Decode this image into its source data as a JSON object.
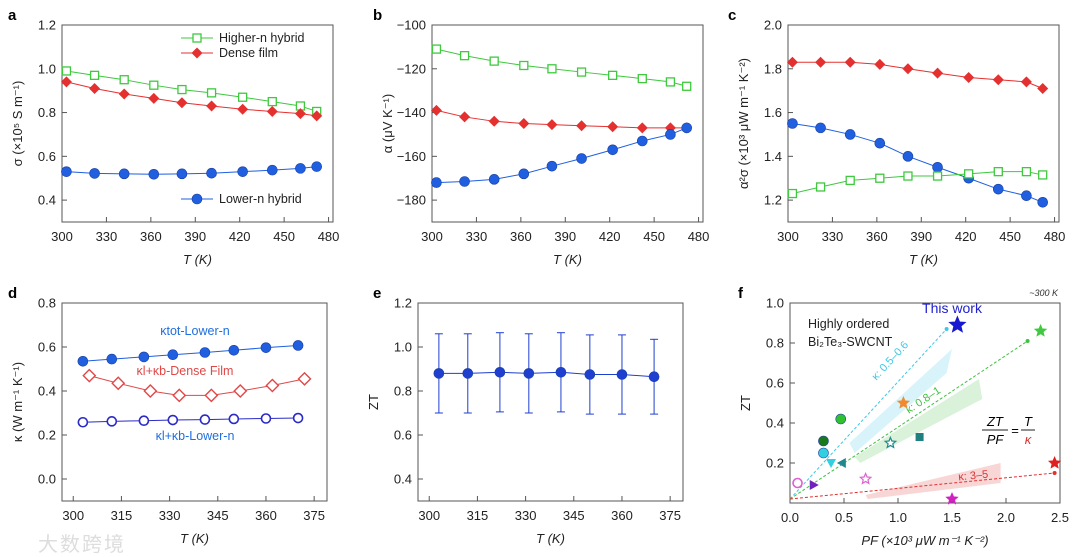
{
  "watermark": "大数跨境",
  "chart_data": [
    {
      "panel": "a",
      "type": "line",
      "xlabel": "T (K)",
      "ylabel": "σ (×10⁵ S m⁻¹)",
      "xlim": [
        300,
        483
      ],
      "ylim": [
        0.3,
        1.2
      ],
      "xticks": [
        300,
        330,
        360,
        390,
        420,
        450,
        480
      ],
      "yticks": [
        0.4,
        0.6,
        0.8,
        1.0,
        1.2
      ],
      "ytick_labels": [
        "0.4",
        "0.6",
        "0.8",
        "1.0",
        "1.2"
      ],
      "x": [
        303,
        322,
        342,
        362,
        381,
        401,
        422,
        442,
        461,
        472
      ],
      "series": [
        {
          "name": "Higher-n hybrid",
          "color": "#3ec93e",
          "marker": "open-square",
          "values": [
            0.99,
            0.97,
            0.95,
            0.925,
            0.905,
            0.89,
            0.87,
            0.85,
            0.83,
            0.805
          ]
        },
        {
          "name": "Dense film",
          "color": "#e53030",
          "marker": "diamond",
          "values": [
            0.94,
            0.91,
            0.885,
            0.865,
            0.845,
            0.83,
            0.815,
            0.805,
            0.795,
            0.785
          ]
        },
        {
          "name": "Lower-n hybrid",
          "color": "#1f5fe0",
          "marker": "circle",
          "values": [
            0.53,
            0.522,
            0.52,
            0.518,
            0.52,
            0.523,
            0.53,
            0.537,
            0.545,
            0.553
          ]
        }
      ]
    },
    {
      "panel": "b",
      "type": "line",
      "xlabel": "T (K)",
      "ylabel": "α (μV K⁻¹)",
      "xlim": [
        300,
        483
      ],
      "ylim": [
        -190,
        -100
      ],
      "xticks": [
        300,
        330,
        360,
        390,
        420,
        450,
        480
      ],
      "yticks": [
        -180,
        -160,
        -140,
        -120,
        -100
      ],
      "ytick_labels": [
        "−180",
        "−160",
        "−140",
        "−120",
        "−100"
      ],
      "x": [
        303,
        322,
        342,
        362,
        381,
        401,
        422,
        442,
        461,
        472
      ],
      "series": [
        {
          "name": "Higher-n hybrid",
          "color": "#3ec93e",
          "marker": "open-square",
          "values": [
            -111,
            -114,
            -116.5,
            -118.5,
            -120,
            -121.5,
            -123,
            -124.5,
            -126,
            -128
          ]
        },
        {
          "name": "Dense film",
          "color": "#e53030",
          "marker": "diamond",
          "values": [
            -139,
            -142,
            -144,
            -145,
            -145.5,
            -146,
            -146.5,
            -147,
            -147,
            -147
          ]
        },
        {
          "name": "Lower-n hybrid",
          "color": "#1f5fe0",
          "marker": "circle",
          "values": [
            -172,
            -171.5,
            -170.5,
            -168,
            -164.5,
            -161,
            -157,
            -153,
            -150,
            -147
          ]
        }
      ]
    },
    {
      "panel": "c",
      "type": "line",
      "xlabel": "T (K)",
      "ylabel": "α²σ (×10³ μW m⁻¹ K⁻²)",
      "xlim": [
        300,
        483
      ],
      "ylim": [
        1.1,
        2.0
      ],
      "xticks": [
        300,
        330,
        360,
        390,
        420,
        450,
        480
      ],
      "yticks": [
        1.2,
        1.4,
        1.6,
        1.8,
        2.0
      ],
      "ytick_labels": [
        "1.2",
        "1.4",
        "1.6",
        "1.8",
        "2.0"
      ],
      "x": [
        303,
        322,
        342,
        362,
        381,
        401,
        422,
        442,
        461,
        472
      ],
      "series": [
        {
          "name": "Dense film",
          "color": "#e53030",
          "marker": "diamond",
          "values": [
            1.83,
            1.83,
            1.83,
            1.82,
            1.8,
            1.78,
            1.76,
            1.75,
            1.74,
            1.71
          ]
        },
        {
          "name": "Lower-n hybrid",
          "color": "#1f5fe0",
          "marker": "circle",
          "values": [
            1.55,
            1.53,
            1.5,
            1.46,
            1.4,
            1.35,
            1.3,
            1.25,
            1.22,
            1.19
          ]
        },
        {
          "name": "Higher-n hybrid",
          "color": "#3ec93e",
          "marker": "open-square",
          "values": [
            1.23,
            1.26,
            1.29,
            1.3,
            1.31,
            1.31,
            1.32,
            1.33,
            1.33,
            1.315
          ]
        }
      ]
    },
    {
      "panel": "d",
      "type": "line",
      "xlabel": "T (K)",
      "ylabel": "κ (W m⁻¹ K⁻¹)",
      "xlim": [
        296.5,
        379
      ],
      "ylim": [
        -0.1,
        0.8
      ],
      "xticks": [
        300,
        315,
        330,
        345,
        360,
        375
      ],
      "yticks": [
        0.0,
        0.2,
        0.4,
        0.6,
        0.8
      ],
      "ytick_labels": [
        "0.0",
        "0.2",
        "0.4",
        "0.6",
        "0.8"
      ],
      "series": [
        {
          "name": "κtot-Lower-n",
          "color": "#1f5fe0",
          "marker": "circle",
          "x": [
            303,
            312,
            322,
            331,
            341,
            350,
            360,
            370
          ],
          "values": [
            0.535,
            0.545,
            0.555,
            0.565,
            0.575,
            0.585,
            0.597,
            0.607
          ]
        },
        {
          "name": "κl+κb-Dense Film",
          "color": "#e04848",
          "marker": "open-diamond",
          "x": [
            305,
            314,
            324,
            333,
            343,
            352,
            362,
            372
          ],
          "values": [
            0.47,
            0.435,
            0.4,
            0.38,
            0.38,
            0.4,
            0.425,
            0.455
          ]
        },
        {
          "name": "κl+κb-Lower-n",
          "color": "#2a2ac8",
          "marker": "open-circle",
          "x": [
            303,
            312,
            322,
            331,
            341,
            350,
            360,
            370
          ],
          "values": [
            0.258,
            0.262,
            0.265,
            0.268,
            0.27,
            0.273,
            0.275,
            0.277
          ]
        }
      ]
    },
    {
      "panel": "e",
      "type": "line",
      "xlabel": "T (K)",
      "ylabel": "ZT",
      "xlim": [
        296.5,
        379
      ],
      "ylim": [
        0.3,
        1.2
      ],
      "xticks": [
        300,
        315,
        330,
        345,
        360,
        375
      ],
      "yticks": [
        0.4,
        0.6,
        0.8,
        1.0,
        1.2
      ],
      "ytick_labels": [
        "0.4",
        "0.6",
        "0.8",
        "1.0",
        "1.2"
      ],
      "series": [
        {
          "name": "ZT",
          "color": "#1f3fd0",
          "marker": "circle",
          "x": [
            303,
            312,
            322,
            331,
            341,
            350,
            360,
            370
          ],
          "values": [
            0.88,
            0.88,
            0.885,
            0.88,
            0.885,
            0.875,
            0.875,
            0.865
          ],
          "errors": [
            0.18,
            0.18,
            0.18,
            0.18,
            0.18,
            0.18,
            0.18,
            0.17
          ]
        }
      ]
    },
    {
      "panel": "f",
      "type": "scatter",
      "xlabel": "PF (×10³ μW m⁻¹ K⁻²)",
      "ylabel": "ZT",
      "xlim": [
        0,
        2.5
      ],
      "ylim": [
        0,
        1.0
      ],
      "xticks": [
        0,
        0.5,
        1.0,
        1.5,
        2.0,
        2.5
      ],
      "xtick_labels": [
        "0.0",
        "0.5",
        "1.0",
        "1.5",
        "2.0",
        "2.5"
      ],
      "yticks": [
        0.2,
        0.4,
        0.6,
        0.8,
        1.0
      ],
      "ytick_labels": [
        "0.2",
        "0.4",
        "0.6",
        "0.8",
        "1.0"
      ],
      "corner_note": "~300 K",
      "this_work_label": "This work",
      "material_line1": "Highly ordered",
      "material_line2": "Bi₂Te₃-SWCNT",
      "formula": {
        "num_left": "ZT",
        "den_left": "PF",
        "eq": "=",
        "num_right": "T",
        "den_right": "κ"
      },
      "guides": [
        {
          "label": "κ: 0.5–0.6",
          "color": "#3cc8e8",
          "end": [
            1.45,
            0.87
          ]
        },
        {
          "label": "κ: 0.8–1",
          "color": "#40c040",
          "end": [
            2.2,
            0.81
          ]
        },
        {
          "label": "κ: 3–5",
          "color": "#e03030",
          "end": [
            2.45,
            0.15
          ]
        }
      ],
      "points": [
        {
          "x": 1.55,
          "y": 0.89,
          "color": "#1818d0",
          "marker": "star",
          "note": "This work"
        },
        {
          "x": 2.32,
          "y": 0.86,
          "color": "#40c840",
          "marker": "star"
        },
        {
          "x": 1.05,
          "y": 0.5,
          "color": "#f08a30",
          "marker": "star"
        },
        {
          "x": 0.47,
          "y": 0.42,
          "color": "#30c030",
          "marker": "circle"
        },
        {
          "x": 0.31,
          "y": 0.31,
          "color": "#1a7a1a",
          "marker": "circle"
        },
        {
          "x": 0.31,
          "y": 0.25,
          "color": "#30d0e0",
          "marker": "circle"
        },
        {
          "x": 0.38,
          "y": 0.2,
          "color": "#30d0e0",
          "marker": "tri-down"
        },
        {
          "x": 0.48,
          "y": 0.2,
          "color": "#208a8a",
          "marker": "tri-left"
        },
        {
          "x": 0.93,
          "y": 0.3,
          "color": "#208a8a",
          "marker": "open-star"
        },
        {
          "x": 1.2,
          "y": 0.33,
          "color": "#208080",
          "marker": "square"
        },
        {
          "x": 0.07,
          "y": 0.1,
          "color": "#e060d0",
          "marker": "open-circle"
        },
        {
          "x": 0.22,
          "y": 0.09,
          "color": "#7020c0",
          "marker": "tri-right"
        },
        {
          "x": 0.7,
          "y": 0.12,
          "color": "#e060d0",
          "marker": "open-star"
        },
        {
          "x": 1.5,
          "y": 0.02,
          "color": "#d020c0",
          "marker": "star"
        },
        {
          "x": 2.45,
          "y": 0.2,
          "color": "#e02020",
          "marker": "star"
        }
      ]
    }
  ]
}
